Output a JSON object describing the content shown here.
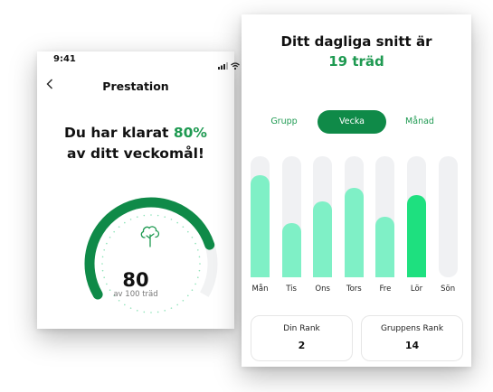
{
  "status_bar": {
    "time": "9:41",
    "icons": [
      "signal-icon",
      "wifi-icon"
    ]
  },
  "left_screen": {
    "back_icon": "chevron-left-icon",
    "title": "Prestation",
    "goal_line1_prefix": "Du har klarat ",
    "goal_percent": "80%",
    "goal_line2": "av ditt veckomål!",
    "gauge": {
      "value": "80",
      "unit": "av 100 träd",
      "progress": 0.8,
      "icon": "tree-icon"
    }
  },
  "right_screen": {
    "avg_title": "Ditt dagliga snitt är",
    "avg_value": "19 träd",
    "tabs": [
      "Grupp",
      "Vecka",
      "Månad"
    ],
    "active_tab": "Vecka",
    "ranks": [
      {
        "title": "Din Rank",
        "value": "2"
      },
      {
        "title": "Gruppens Rank",
        "value": "14"
      }
    ]
  },
  "colors": {
    "accent": "#1f9a52",
    "bar_fill": "#7ff0c6",
    "bar_highlight": "#1ee07f",
    "track": "#f0f1f3",
    "gauge": "#0f8a48"
  },
  "chart_data": {
    "type": "bar",
    "categories": [
      "Mån",
      "Tis",
      "Ons",
      "Tors",
      "Fre",
      "Lör",
      "Sön"
    ],
    "values": [
      0.84,
      0.45,
      0.63,
      0.74,
      0.5,
      0.68,
      0
    ],
    "ylim": [
      0,
      1
    ],
    "highlight_index": 5,
    "grid": false
  }
}
